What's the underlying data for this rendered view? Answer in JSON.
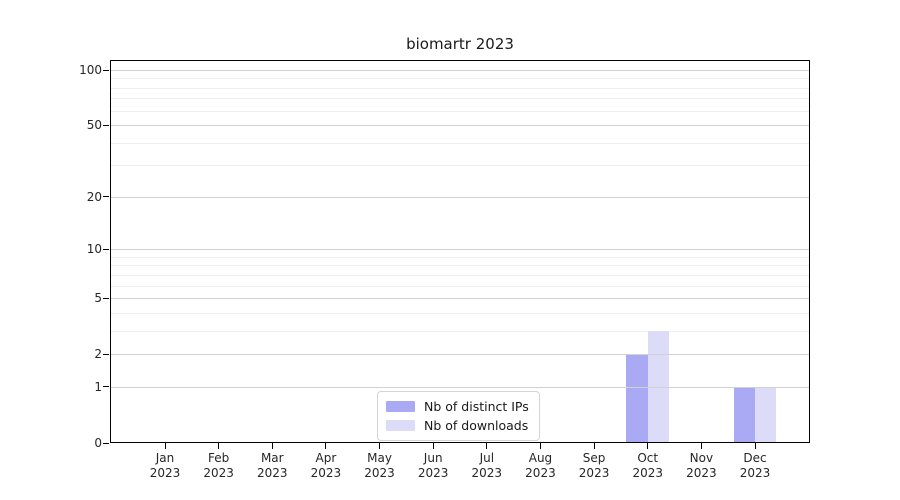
{
  "chart_data": {
    "type": "bar",
    "title": "biomartr 2023",
    "categories": [
      "Jan 2023",
      "Feb 2023",
      "Mar 2023",
      "Apr 2023",
      "May 2023",
      "Jun 2023",
      "Jul 2023",
      "Aug 2023",
      "Sep 2023",
      "Oct 2023",
      "Nov 2023",
      "Dec 2023"
    ],
    "series": [
      {
        "name": "Nb of distinct IPs",
        "color": "#a9a9f4",
        "values": [
          0,
          0,
          0,
          0,
          0,
          0,
          0,
          0,
          0,
          2,
          0,
          1
        ]
      },
      {
        "name": "Nb of downloads",
        "color": "#dcdcf8",
        "values": [
          0,
          0,
          0,
          0,
          0,
          0,
          0,
          0,
          0,
          3,
          0,
          1
        ]
      }
    ],
    "yscale": "log1p",
    "ylim": [
      0,
      113
    ],
    "yticks": [
      0,
      1,
      2,
      5,
      10,
      20,
      50,
      100
    ],
    "yticks_minor": [
      3,
      4,
      6,
      7,
      8,
      9,
      30,
      40,
      60,
      70,
      80,
      90
    ],
    "grid": true,
    "legend_position": "lower center",
    "bar_width_fraction": 0.4
  },
  "colors": {
    "grid_major": "#d2d2d2",
    "grid_minor": "#eeeeee",
    "spine": "#000000",
    "tick_label": "#262626"
  }
}
